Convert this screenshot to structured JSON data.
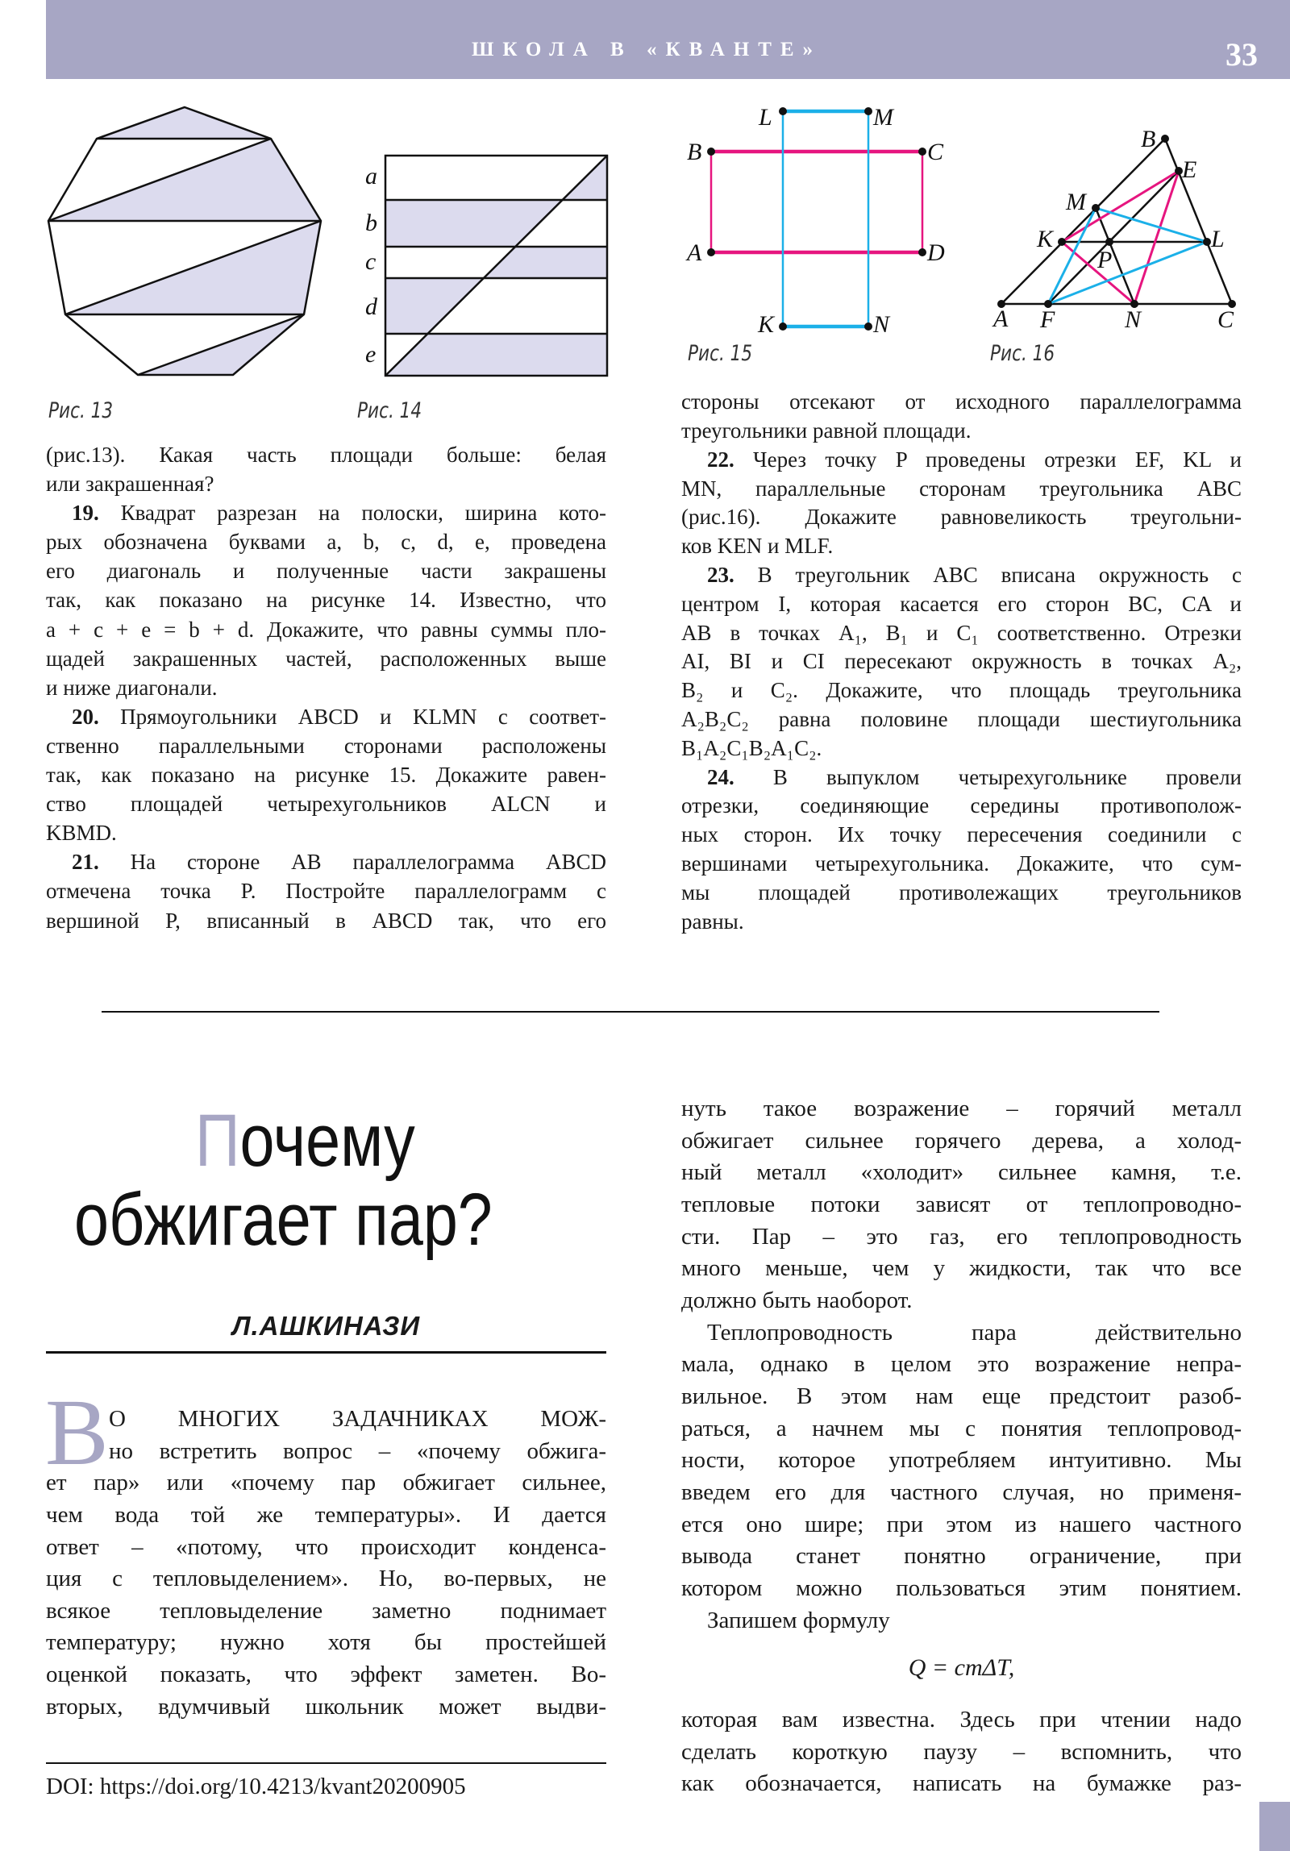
{
  "header": {
    "section_title": "ШКОЛА В «КВАНТЕ»",
    "page_number": "33",
    "band_color": "#a7a6c4"
  },
  "colors": {
    "shade": "#dcdbee",
    "magenta": "#e6157f",
    "cyan": "#1bb0e8",
    "accent": "#a7a6c4"
  },
  "figures": {
    "fig13": {
      "caption": "Рис. 13"
    },
    "fig14": {
      "caption": "Рис. 14",
      "labels": [
        "a",
        "b",
        "c",
        "d",
        "e"
      ]
    },
    "fig15": {
      "caption": "Рис. 15",
      "labels": {
        "L": "L",
        "M": "M",
        "B": "B",
        "C": "C",
        "A": "A",
        "D": "D",
        "K": "K",
        "N": "N"
      }
    },
    "fig16": {
      "caption": "Рис. 16",
      "labels": {
        "B": "B",
        "E": "E",
        "M": "M",
        "K": "K",
        "P": "P",
        "L": "L",
        "A": "A",
        "F": "F",
        "N": "N",
        "C": "C"
      }
    }
  },
  "problems_left": [
    {
      "t": "(рис.13). Какая часть площади больше: белая",
      "j": true
    },
    {
      "t": "или закрашенная?"
    },
    {
      "n": "19.",
      "t": " Квадрат разрезан на полоски, ширина кото-",
      "j": true,
      "i": true
    },
    {
      "t": "рых обозначена буквами a, b, c, d, e, проведена",
      "j": true
    },
    {
      "t": "его диагональ и полученные части закрашены",
      "j": true
    },
    {
      "t": "так, как показано на рисунке 14. Известно, что",
      "j": true
    },
    {
      "t": "a + c + e = b + d. Докажите, что равны суммы пло-",
      "j": true
    },
    {
      "t": "щадей закрашенных частей, расположенных выше",
      "j": true
    },
    {
      "t": "и ниже диагонали."
    },
    {
      "n": "20.",
      "t": " Прямоугольники ABCD и KLMN с соответ-",
      "j": true,
      "i": true
    },
    {
      "t": "ственно параллельными сторонами расположены",
      "j": true
    },
    {
      "t": "так, как показано на рисунке 15. Докажите равен-",
      "j": true
    },
    {
      "t": "ство площадей четырехугольников ALCN и",
      "j": true
    },
    {
      "t": "KBMD."
    },
    {
      "n": "21.",
      "t": " На стороне AB параллелограмма ABCD",
      "j": true,
      "i": true
    },
    {
      "t": "отмечена точка P. Постройте параллелограмм с",
      "j": true
    },
    {
      "t": "вершиной P, вписанный в ABCD так, что его",
      "j": true
    }
  ],
  "problems_right": [
    {
      "t": "стороны отсекают от исходного параллелограмма",
      "j": true
    },
    {
      "t": "треугольники равной площади."
    },
    {
      "n": "22.",
      "t": " Через точку P проведены отрезки EF, KL и",
      "j": true,
      "i": true
    },
    {
      "t": "MN, параллельные сторонам треугольника ABC",
      "j": true
    },
    {
      "t": "(рис.16). Докажите равновеликость треугольни-",
      "j": true
    },
    {
      "t": "ков KEN и MLF."
    },
    {
      "n": "23.",
      "t": " В треугольник ABC вписана окружность с",
      "j": true,
      "i": true
    },
    {
      "t": "центром I, которая касается его сторон BC, CA и",
      "j": true
    },
    {
      "t": "AB в точках A₁, B₁ и C₁ соответственно. Отрезки",
      "j": true
    },
    {
      "t": "AI, BI и CI пересекают окружность в точках A₂,",
      "j": true
    },
    {
      "t": "B₂ и C₂. Докажите, что площадь треугольника",
      "j": true
    },
    {
      "t": "A₂B₂C₂ равна половине площади шестиугольника",
      "j": true
    },
    {
      "t": "B₁A₂C₁B₂A₁C₂."
    },
    {
      "n": "24.",
      "t": " В выпуклом четырехугольнике провели",
      "j": true,
      "i": true
    },
    {
      "t": "отрезки, соединяющие середины противополож-",
      "j": true
    },
    {
      "t": "ных сторон. Их точку пересечения соединили с",
      "j": true
    },
    {
      "t": "вершинами четырехугольника. Докажите, что сум-",
      "j": true
    },
    {
      "t": "мы площадей противолежащих треугольников",
      "j": true
    },
    {
      "t": "равны."
    }
  ],
  "article": {
    "title_first_letter": "П",
    "title_line1_rest": "очему",
    "title_line2": "обжигает пар?",
    "author": "Л.АШКИНАЗИ",
    "drop_cap": "В",
    "left": [
      {
        "t": "О МНОГИХ ЗАДАЧНИКАХ МОЖ-",
        "j": true,
        "d": true
      },
      {
        "t": "но встретить вопрос – «почему обжига-",
        "j": true,
        "d": true
      },
      {
        "t": "ет пар» или «почему пар обжигает сильнее,",
        "j": true
      },
      {
        "t": "чем вода той же температуры». И дается",
        "j": true
      },
      {
        "t": "ответ – «потому, что происходит конденса-",
        "j": true
      },
      {
        "t": "ция с тепловыделением». Но, во-первых, не",
        "j": true
      },
      {
        "t": "всякое тепловыделение заметно поднимает",
        "j": true
      },
      {
        "t": "температуру; нужно хотя бы простейшей",
        "j": true
      },
      {
        "t": "оценкой показать, что эффект заметен. Во-",
        "j": true
      },
      {
        "t": "вторых, вдумчивый школьник может выдви-",
        "j": true
      }
    ],
    "right": [
      {
        "t": "нуть такое возражение – горячий металл",
        "j": true
      },
      {
        "t": "обжигает сильнее горячего дерева, а холод-",
        "j": true
      },
      {
        "t": "ный металл «холодит» сильнее камня, т.е.",
        "j": true
      },
      {
        "t": "тепловые потоки зависят от теплопроводно-",
        "j": true
      },
      {
        "t": "сти. Пар – это газ, его теплопроводность",
        "j": true
      },
      {
        "t": "много меньше, чем у жидкости, так что все",
        "j": true
      },
      {
        "t": "должно быть наоборот."
      },
      {
        "t": "Теплопроводность пара действительно",
        "j": true,
        "i": true
      },
      {
        "t": "мала, однако в целом это возражение непра-",
        "j": true
      },
      {
        "t": "вильное. В этом нам еще предстоит разоб-",
        "j": true
      },
      {
        "t": "раться, а начнем мы с понятия теплопровод-",
        "j": true
      },
      {
        "t": "ности, которое употребляем интуитивно. Мы",
        "j": true
      },
      {
        "t": "введем его для частного случая, но применя-",
        "j": true
      },
      {
        "t": "ется оно шире; при этом из нашего частного",
        "j": true
      },
      {
        "t": "вывода станет понятно ограничение, при",
        "j": true
      },
      {
        "t": "котором можно пользоваться этим понятием.",
        "j": true
      },
      {
        "t": "Запишем формулу",
        "i": true
      }
    ],
    "formula": "Q = cmΔT,",
    "right_after": [
      {
        "t": "которая вам известна. Здесь при чтении надо",
        "j": true
      },
      {
        "t": "сделать короткую паузу – вспомнить, что",
        "j": true
      },
      {
        "t": "как обозначается, написать на бумажке раз-",
        "j": true
      }
    ],
    "doi": "DOI: https://doi.org/10.4213/kvant20200905"
  }
}
